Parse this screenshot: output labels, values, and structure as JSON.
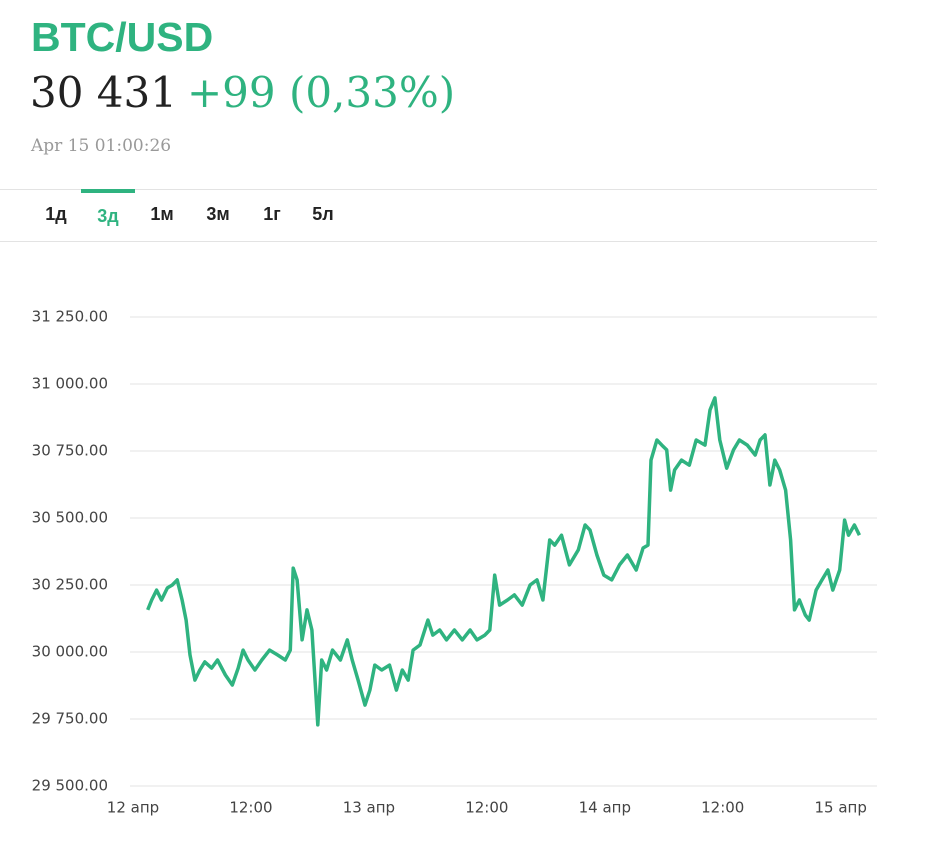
{
  "header": {
    "title": "BTC/USD",
    "price": "30 431",
    "change": "+99 (0,33%)",
    "timestamp": "Apr 15 01:00:26"
  },
  "tabs": [
    "1д",
    "3д",
    "1м",
    "3м",
    "1г",
    "5л"
  ],
  "chart_data": {
    "type": "line",
    "x": [
      1.5,
      1.9,
      2.4,
      2.9,
      3.5,
      4.0,
      4.5,
      5.0,
      5.4,
      5.8,
      6.3,
      6.8,
      7.3,
      8.0,
      8.6,
      9.4,
      10.1,
      10.7,
      11.2,
      11.7,
      12.4,
      13.1,
      13.9,
      14.7,
      15.5,
      16.0,
      16.3,
      16.7,
      17.2,
      17.7,
      18.2,
      18.8,
      19.2,
      19.7,
      20.3,
      21.1,
      21.8,
      22.3,
      22.9,
      23.6,
      24.1,
      24.6,
      25.3,
      26.1,
      26.8,
      27.4,
      28.0,
      28.5,
      29.2,
      30.0,
      30.5,
      31.2,
      31.9,
      32.7,
      33.5,
      34.3,
      35.0,
      35.8,
      36.3,
      36.8,
      37.3,
      38.1,
      38.8,
      39.6,
      40.4,
      41.1,
      41.7,
      42.4,
      42.9,
      43.6,
      44.4,
      45.3,
      46.0,
      46.5,
      47.2,
      47.9,
      48.7,
      49.5,
      50.3,
      51.2,
      51.9,
      52.4,
      52.7,
      53.3,
      53.8,
      54.3,
      54.7,
      55.1,
      55.8,
      56.6,
      57.3,
      58.2,
      58.7,
      59.2,
      59.7,
      60.4,
      61.1,
      61.7,
      62.5,
      63.3,
      63.8,
      64.3,
      64.8,
      65.3,
      65.8,
      66.4,
      66.9,
      67.3,
      67.8,
      68.4,
      68.8,
      69.5,
      70.1,
      70.7,
      71.2,
      71.9,
      72.4,
      72.8,
      73.4,
      73.9
    ],
    "series": [
      {
        "color": "#2fb380",
        "values": [
          30157,
          30194,
          30231,
          30194,
          30239,
          30250,
          30269,
          30194,
          30119,
          29989,
          29895,
          29933,
          29963,
          29940,
          29970,
          29914,
          29877,
          29940,
          30007,
          29970,
          29933,
          29970,
          30007,
          29989,
          29970,
          30007,
          30313,
          30269,
          30045,
          30157,
          30082,
          29728,
          29970,
          29933,
          30007,
          29970,
          30045,
          29970,
          29895,
          29802,
          29858,
          29951,
          29933,
          29951,
          29858,
          29933,
          29895,
          30007,
          30026,
          30119,
          30063,
          30082,
          30045,
          30082,
          30045,
          30082,
          30045,
          30063,
          30082,
          30287,
          30175,
          30194,
          30213,
          30175,
          30250,
          30269,
          30194,
          30418,
          30399,
          30436,
          30325,
          30381,
          30474,
          30455,
          30362,
          30287,
          30269,
          30325,
          30362,
          30306,
          30388,
          30399,
          30716,
          30791,
          30772,
          30754,
          30604,
          30679,
          30716,
          30697,
          30791,
          30772,
          30903,
          30948,
          30791,
          30686,
          30754,
          30791,
          30772,
          30735,
          30791,
          30810,
          30623,
          30716,
          30679,
          30604,
          30418,
          30157,
          30194,
          30138,
          30119,
          30231,
          30269,
          30306,
          30231,
          30306,
          30492,
          30436,
          30474,
          30436
        ]
      }
    ],
    "xlim": [
      0,
      76
    ],
    "xticks": [
      {
        "value": 0,
        "label": "12 апр"
      },
      {
        "value": 12,
        "label": "12:00"
      },
      {
        "value": 24,
        "label": "13 апр"
      },
      {
        "value": 36,
        "label": "12:00"
      },
      {
        "value": 48,
        "label": "14 апр"
      },
      {
        "value": 60,
        "label": "12:00"
      },
      {
        "value": 72,
        "label": "15 апр"
      }
    ],
    "ylim": [
      29500,
      31250
    ],
    "yticks": [
      {
        "value": 29500,
        "label": "29 500.00"
      },
      {
        "value": 29750,
        "label": "29 750.00"
      },
      {
        "value": 30000,
        "label": "30 000.00"
      },
      {
        "value": 30250,
        "label": "30 250.00"
      },
      {
        "value": 30500,
        "label": "30 500.00"
      },
      {
        "value": 30750,
        "label": "30 750.00"
      },
      {
        "value": 31000,
        "label": "31 000.00"
      },
      {
        "value": 31250,
        "label": "31 250.00"
      }
    ],
    "grid": true
  }
}
